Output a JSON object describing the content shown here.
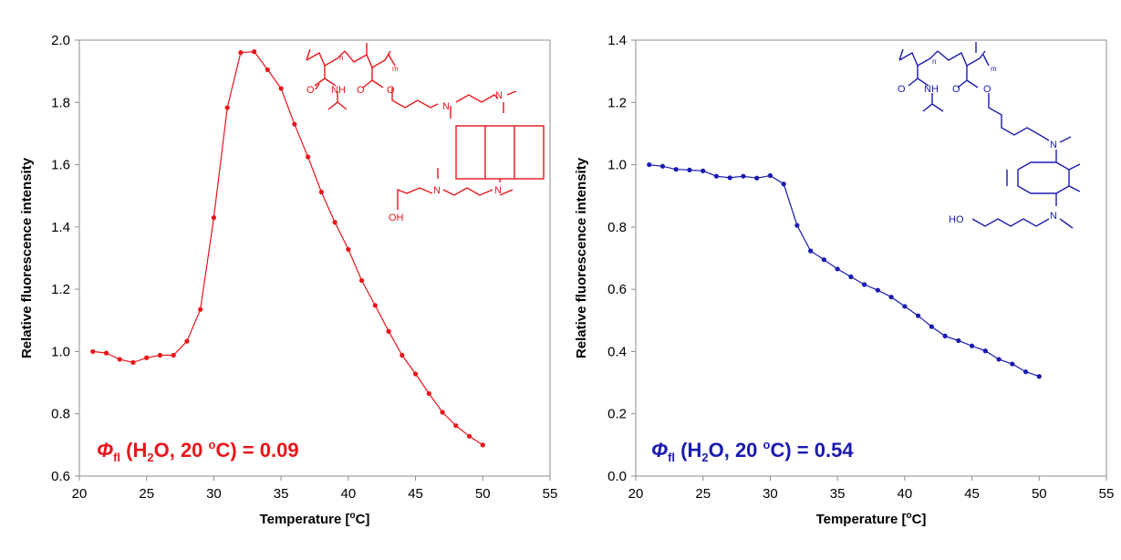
{
  "chart_data": [
    {
      "type": "line",
      "xlabel_pre": "Temperature [",
      "xlabel_sup": "o",
      "xlabel_post": "C]",
      "ylabel": "Relative fluorescence intensity",
      "xlim": [
        20,
        55
      ],
      "ylim": [
        0.6,
        2.0
      ],
      "xticks": [
        20,
        25,
        30,
        35,
        40,
        45,
        50,
        55
      ],
      "yticks": [
        0.6,
        0.8,
        1.0,
        1.2,
        1.4,
        1.6,
        1.8,
        2.0
      ],
      "ytick_labels": [
        "0.6",
        "0.8",
        "1.0",
        "1.2",
        "1.4",
        "1.6",
        "1.8",
        "2.0"
      ],
      "color": "#e8151b",
      "grid": false,
      "series": [
        {
          "x": [
            21,
            22,
            23,
            24,
            25,
            26,
            27,
            28,
            29,
            30,
            31,
            32,
            33,
            34,
            35,
            36,
            37,
            38,
            39,
            40,
            41,
            42,
            43,
            44,
            45,
            46,
            47,
            48,
            49,
            50
          ],
          "values": [
            1.0,
            0.995,
            0.975,
            0.965,
            0.98,
            0.988,
            0.988,
            1.033,
            1.135,
            1.43,
            1.783,
            1.96,
            1.963,
            1.905,
            1.845,
            1.73,
            1.625,
            1.512,
            1.415,
            1.328,
            1.228,
            1.148,
            1.065,
            0.988,
            0.928,
            0.865,
            0.805,
            0.762,
            0.728,
            0.7
          ]
        }
      ],
      "annotation": {
        "symbol": "Φ",
        "sub": "fl",
        "pre": " (H",
        "sub2": "2",
        "mid": "O, 20 ",
        "sup": "o",
        "post": "C) = 0.09"
      }
    },
    {
      "type": "line",
      "xlabel_pre": "Temperature [",
      "xlabel_sup": "o",
      "xlabel_post": "C]",
      "ylabel": "Relative fluorescence intensity",
      "xlim": [
        20,
        55
      ],
      "ylim": [
        0.0,
        1.4
      ],
      "xticks": [
        20,
        25,
        30,
        35,
        40,
        45,
        50,
        55
      ],
      "yticks": [
        0.0,
        0.2,
        0.4,
        0.6,
        0.8,
        1.0,
        1.2,
        1.4
      ],
      "ytick_labels": [
        "0.0",
        "0.2",
        "0.4",
        "0.6",
        "0.8",
        "1.0",
        "1.2",
        "1.4"
      ],
      "color": "#1a1ab0",
      "grid": false,
      "series": [
        {
          "x": [
            21,
            22,
            23,
            24,
            25,
            26,
            27,
            28,
            29,
            30,
            31,
            32,
            33,
            34,
            35,
            36,
            37,
            38,
            39,
            40,
            41,
            42,
            43,
            44,
            45,
            46,
            47,
            48,
            49,
            50
          ],
          "values": [
            1.0,
            0.995,
            0.985,
            0.983,
            0.98,
            0.963,
            0.958,
            0.963,
            0.957,
            0.965,
            0.938,
            0.805,
            0.723,
            0.695,
            0.665,
            0.64,
            0.615,
            0.597,
            0.575,
            0.545,
            0.515,
            0.48,
            0.45,
            0.435,
            0.418,
            0.402,
            0.375,
            0.36,
            0.335,
            0.32
          ]
        }
      ],
      "annotation": {
        "symbol": "Φ",
        "sub": "fl",
        "pre": " (H",
        "sub2": "2",
        "mid": "O, 20 ",
        "sup": "o",
        "post": "C) = 0.54"
      }
    }
  ],
  "structures": [
    {
      "n": "n",
      "m": "m",
      "o1": "O",
      "nh": "NH",
      "o2": "O",
      "o3": "O",
      "n1": "N",
      "n2": "N",
      "n3": "N",
      "n4": "N",
      "oh": "OH"
    },
    {
      "n": "n",
      "m": "m",
      "o1": "O",
      "nh": "NH",
      "o2": "O",
      "o3": "O",
      "n1": "N",
      "n2": "N",
      "ho": "HO"
    }
  ]
}
